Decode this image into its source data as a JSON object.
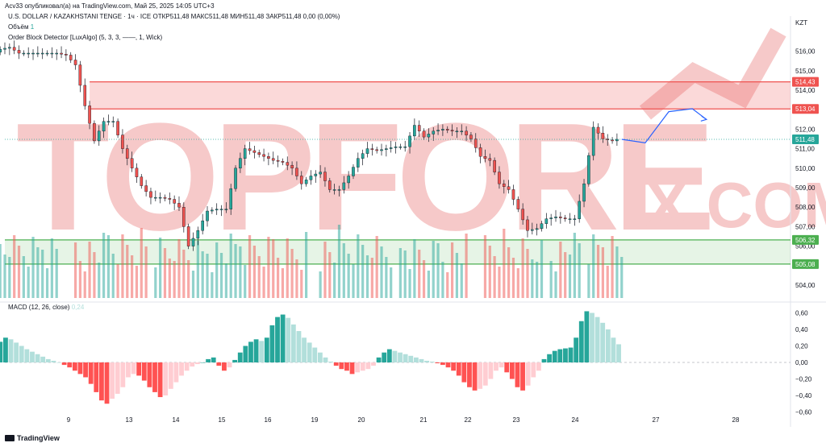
{
  "header": {
    "published": "Acv33 опубликовал(а) на TradingView.com, Май 25, 2025 14:05 UTC+3",
    "symbol_line": "U.S. DOLLAR / KAZAKHSTANI TENGE · 1ч · ICE  ОТКР511,48  МАКС511,48  МИН511,48  ЗАКР511,48  0,00 (0,00%)",
    "volume_label": "Объём",
    "volume_value": "1",
    "indicator": "Order Block Detector [LuxAlgo] (5, 3, 3, ——, 1, Wick)",
    "macd_label": "MACD (12, 26, close)",
    "macd_value": "0,24",
    "currency": "KZT"
  },
  "footer": {
    "brand": "TradingView"
  },
  "watermark": "TOPFOREX.COM",
  "colors": {
    "up": "#26a69a",
    "down": "#ef5350",
    "zone_red": "#ef5350",
    "zone_green": "#4caf50",
    "projection": "#2962ff",
    "last_price_bg": "#26a69a"
  },
  "chart_data": [
    {
      "type": "candlestick",
      "title": "U.S. DOLLAR / KAZAKHSTANI TENGE",
      "y_ticks": [
        "504,00",
        "505,00",
        "506,00",
        "507,00",
        "508,00",
        "509,00",
        "510,00",
        "511,00",
        "512,00",
        "513,00",
        "514,00",
        "515,00",
        "516,00"
      ],
      "ylim": [
        503.5,
        517.0
      ],
      "x_ticks": [
        "9",
        "13",
        "14",
        "15",
        "16",
        "19",
        "20",
        "21",
        "22",
        "23",
        "24",
        "27",
        "28"
      ],
      "price_labels": [
        {
          "text": "514,43",
          "value": 514.43,
          "kind": "zone_red"
        },
        {
          "text": "513,04",
          "value": 513.04,
          "kind": "zone_red"
        },
        {
          "text": "511,48",
          "value": 511.48,
          "kind": "last"
        },
        {
          "text": "506,32",
          "value": 506.32,
          "kind": "zone_green"
        },
        {
          "text": "505,08",
          "value": 505.08,
          "kind": "zone_green"
        }
      ],
      "zones": [
        {
          "kind": "bearish_order_block",
          "top": 514.43,
          "bottom": 513.04
        },
        {
          "kind": "bullish_order_block",
          "top": 506.32,
          "bottom": 505.08
        }
      ],
      "last_price": 511.48,
      "close_path": [
        [
          0,
          515.2
        ],
        [
          2,
          515.3
        ],
        [
          4,
          515.8
        ],
        [
          6,
          516.1
        ],
        [
          8,
          516.2
        ],
        [
          10,
          515.9
        ],
        [
          12,
          515.9
        ],
        [
          14,
          515.9
        ],
        [
          16,
          515.9
        ],
        [
          18,
          515.9
        ],
        [
          20,
          515.8
        ],
        [
          22,
          515.3
        ],
        [
          24,
          513.2
        ],
        [
          26,
          511.4
        ],
        [
          28,
          512.4
        ],
        [
          30,
          512.4
        ],
        [
          32,
          511.0
        ],
        [
          34,
          510.0
        ],
        [
          36,
          509.1
        ],
        [
          38,
          508.5
        ],
        [
          40,
          508.5
        ],
        [
          42,
          508.4
        ],
        [
          44,
          508.0
        ],
        [
          46,
          506.0
        ],
        [
          48,
          506.8
        ],
        [
          50,
          507.8
        ],
        [
          52,
          507.9
        ],
        [
          54,
          507.9
        ],
        [
          56,
          510.0
        ],
        [
          58,
          511.0
        ],
        [
          60,
          510.8
        ],
        [
          62,
          510.6
        ],
        [
          64,
          510.4
        ],
        [
          66,
          510.3
        ],
        [
          68,
          510.0
        ],
        [
          70,
          509.2
        ],
        [
          72,
          509.6
        ],
        [
          74,
          509.8
        ],
        [
          76,
          508.9
        ],
        [
          78,
          508.9
        ],
        [
          80,
          509.6
        ],
        [
          82,
          510.5
        ],
        [
          84,
          511.0
        ],
        [
          86,
          510.9
        ],
        [
          88,
          511.0
        ],
        [
          90,
          511.1
        ],
        [
          92,
          511.1
        ],
        [
          94,
          512.2
        ],
        [
          96,
          511.6
        ],
        [
          98,
          511.9
        ],
        [
          100,
          512.0
        ],
        [
          102,
          511.9
        ],
        [
          104,
          511.9
        ],
        [
          106,
          511.5
        ],
        [
          108,
          510.6
        ],
        [
          110,
          510.4
        ],
        [
          112,
          509.2
        ],
        [
          114,
          508.9
        ],
        [
          116,
          507.9
        ],
        [
          118,
          506.8
        ],
        [
          120,
          506.9
        ],
        [
          122,
          507.4
        ],
        [
          124,
          507.5
        ],
        [
          126,
          507.4
        ],
        [
          128,
          507.4
        ],
        [
          130,
          509.2
        ],
        [
          132,
          512.1
        ],
        [
          134,
          511.5
        ],
        [
          136,
          511.4
        ],
        [
          137,
          511.48
        ]
      ],
      "projection": [
        [
          137,
          511.48
        ],
        [
          142,
          511.3
        ],
        [
          147,
          512.9
        ],
        [
          152,
          513.05
        ],
        [
          155,
          512.5
        ]
      ],
      "volume_bars": 138
    },
    {
      "type": "bar",
      "title": "MACD (12, 26, close)",
      "y_ticks": [
        "0,60",
        "0,40",
        "0,20",
        "0,00",
        "−0,20",
        "−0,40",
        "−0,60"
      ],
      "ylim": [
        -0.62,
        0.62
      ],
      "histogram": [
        0.05,
        0.1,
        0.16,
        0.2,
        0.25,
        0.3,
        0.28,
        0.24,
        0.2,
        0.16,
        0.13,
        0.1,
        0.07,
        0.04,
        0.02,
        0.0,
        -0.03,
        -0.06,
        -0.1,
        -0.14,
        -0.18,
        -0.26,
        -0.36,
        -0.46,
        -0.5,
        -0.44,
        -0.38,
        -0.3,
        -0.18,
        -0.14,
        -0.16,
        -0.22,
        -0.3,
        -0.36,
        -0.42,
        -0.4,
        -0.32,
        -0.24,
        -0.16,
        -0.1,
        -0.05,
        -0.02,
        0.0,
        0.04,
        0.06,
        -0.04,
        -0.1,
        -0.06,
        0.03,
        0.12,
        0.2,
        0.25,
        0.28,
        0.26,
        0.3,
        0.45,
        0.55,
        0.58,
        0.54,
        0.46,
        0.38,
        0.3,
        0.24,
        0.18,
        0.12,
        0.06,
        0.01,
        -0.04,
        -0.08,
        -0.1,
        -0.14,
        -0.12,
        -0.1,
        -0.08,
        -0.04,
        0.06,
        0.12,
        0.16,
        0.14,
        0.12,
        0.1,
        0.08,
        0.06,
        0.04,
        0.02,
        0.01,
        -0.01,
        -0.03,
        -0.06,
        -0.1,
        -0.16,
        -0.24,
        -0.3,
        -0.34,
        -0.32,
        -0.28,
        -0.2,
        -0.1,
        -0.06,
        -0.12,
        -0.2,
        -0.3,
        -0.34,
        -0.28,
        -0.18,
        -0.1,
        0.04,
        0.1,
        0.14,
        0.16,
        0.17,
        0.18,
        0.3,
        0.5,
        0.62,
        0.6,
        0.55,
        0.48,
        0.4,
        0.3,
        0.22
      ]
    }
  ]
}
